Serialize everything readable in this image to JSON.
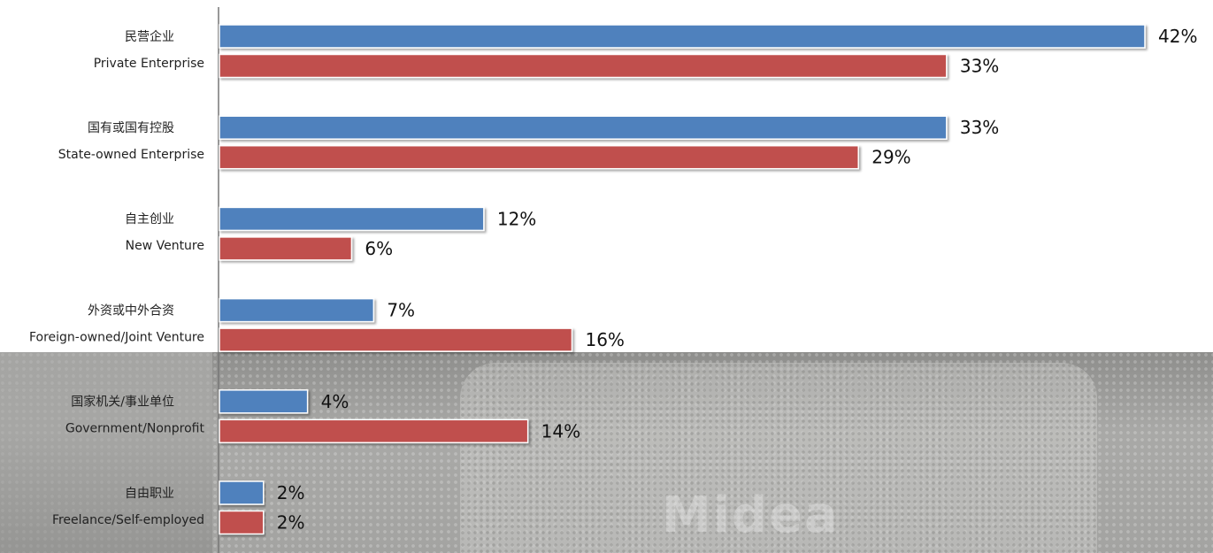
{
  "chart_data": {
    "type": "bar",
    "orientation": "horizontal",
    "categories": [
      {
        "zh": "民营企业",
        "en": "Private Enterprise"
      },
      {
        "zh": "国有或国有控股",
        "en": "State-owned Enterprise"
      },
      {
        "zh": "自主创业",
        "en": "New Venture"
      },
      {
        "zh": "外资或中外合资",
        "en": "Foreign-owned/Joint Venture"
      },
      {
        "zh": "国家机关/事业单位",
        "en": "Government/Nonprofit"
      },
      {
        "zh": "自由职业",
        "en": "Freelance/Self-employed"
      }
    ],
    "series": [
      {
        "values": [
          42,
          33,
          12,
          7,
          4,
          2
        ],
        "color": "#4F81BD"
      },
      {
        "values": [
          33,
          29,
          6,
          16,
          14,
          2
        ],
        "color": "#C0504D"
      }
    ],
    "value_suffix": "%",
    "xlim": [
      0,
      42
    ],
    "grid": false,
    "legend": "none"
  },
  "background": {
    "logo_text": "Midea"
  }
}
